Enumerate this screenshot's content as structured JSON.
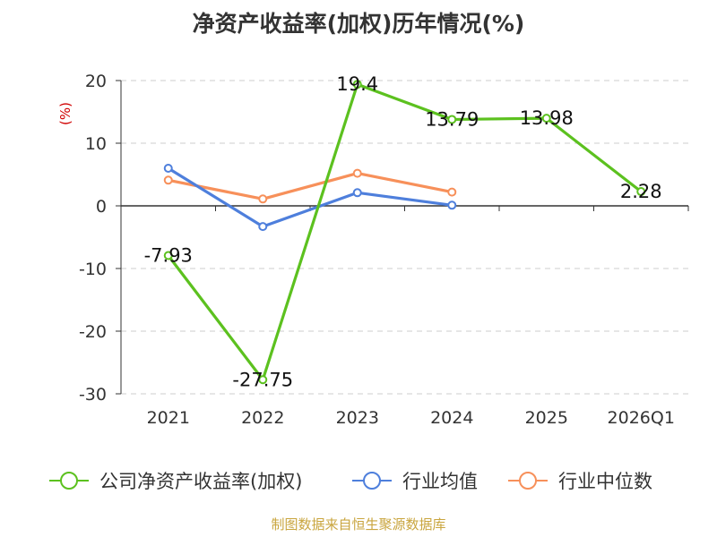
{
  "chart_data": {
    "type": "line",
    "title": "净资产收益率(加权)历年情况(%)",
    "ylabel": "(%)",
    "categories": [
      "2021",
      "2022",
      "2023",
      "2024",
      "2025",
      "2026Q1"
    ],
    "yticks": [
      "20",
      "10",
      "0",
      "-10",
      "-20",
      "-30"
    ],
    "ylim": [
      -30,
      20
    ],
    "grid": true,
    "legend_position": "bottom",
    "series": [
      {
        "name": "公司净资产收益率(加权)",
        "color": "#5cc11f",
        "values": [
          -7.93,
          -27.75,
          19.4,
          13.79,
          13.98,
          2.28
        ],
        "labels": [
          "-7.93",
          "-27.75",
          "19.4",
          "13.79",
          "13.98",
          "2.28"
        ]
      },
      {
        "name": "行业均值",
        "color": "#4e7fdc",
        "values": [
          6.0,
          -3.3,
          2.1,
          0.1,
          null,
          null
        ],
        "labels": []
      },
      {
        "name": "行业中位数",
        "color": "#f7905a",
        "values": [
          4.1,
          1.1,
          5.2,
          2.2,
          null,
          null
        ],
        "labels": []
      }
    ]
  },
  "source_note": "制图数据来自恒生聚源数据库"
}
